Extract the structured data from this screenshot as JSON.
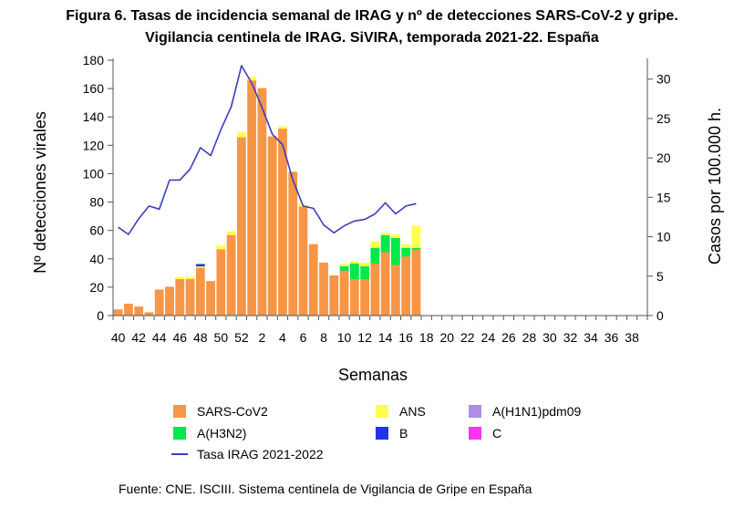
{
  "chart_data": {
    "type": "bar",
    "title_line1": "Figura 6. Tasas de incidencia semanal de IRAG y nº de detecciones SARS-CoV-2 y gripe.",
    "title_line2": "Vigilancia centinela de IRAG. SiVIRA, temporada 2021-22. España",
    "xlabel": "Semanas",
    "ylabel_left": "Nº detecciones virales",
    "ylabel_right": "Casos por 100.000 h.",
    "ylim_left": [
      0,
      180
    ],
    "ylim_right": [
      0,
      32.4
    ],
    "yticks_left": [
      "0",
      "20",
      "40",
      "60",
      "80",
      "100",
      "120",
      "140",
      "160",
      "180"
    ],
    "yticks_right": [
      "0",
      "5",
      "10",
      "15",
      "20",
      "25",
      "30"
    ],
    "weeks": [
      "40",
      "41",
      "42",
      "43",
      "44",
      "45",
      "46",
      "47",
      "48",
      "49",
      "50",
      "51",
      "52",
      "1",
      "2",
      "3",
      "4",
      "5",
      "6",
      "7",
      "8",
      "9",
      "10",
      "11",
      "12",
      "13",
      "14",
      "15",
      "16",
      "17",
      "18",
      "19",
      "20",
      "21",
      "22",
      "23",
      "24",
      "25",
      "26",
      "27",
      "28",
      "29",
      "30",
      "31",
      "32",
      "33",
      "34",
      "35",
      "36",
      "37",
      "38",
      "39"
    ],
    "xtick_labels": [
      "40",
      "42",
      "44",
      "46",
      "48",
      "50",
      "52",
      "2",
      "4",
      "6",
      "8",
      "10",
      "12",
      "14",
      "16",
      "18",
      "20",
      "22",
      "24",
      "26",
      "28",
      "30",
      "32",
      "34",
      "36",
      "38"
    ],
    "series": [
      {
        "name": "SARS-CoV2",
        "color": "#f79646",
        "values": [
          4,
          8,
          6,
          2,
          18,
          20,
          26,
          26,
          34,
          24,
          47,
          57,
          126,
          166,
          160,
          126,
          132,
          101,
          77,
          50,
          37,
          28,
          32,
          26,
          26,
          37,
          45,
          36,
          42,
          47
        ]
      },
      {
        "name": "A(H3N2)",
        "color": "#00e84a",
        "values": [
          0,
          0,
          0,
          0,
          0,
          0,
          0,
          0,
          0,
          0,
          0,
          0,
          0,
          0,
          0,
          0,
          0,
          0,
          0,
          0,
          0,
          0,
          3,
          11,
          9,
          11,
          12,
          19,
          6,
          1
        ]
      },
      {
        "name": "ANS",
        "color": "#ffff4d",
        "values": [
          0,
          0,
          0,
          0,
          0,
          0,
          1,
          1,
          1,
          0,
          2,
          2,
          3,
          2,
          0,
          0,
          1,
          0,
          1,
          0,
          0,
          0,
          1,
          1,
          2,
          4,
          1,
          2,
          2,
          15
        ]
      },
      {
        "name": "B",
        "color": "#2233ee",
        "values": [
          0,
          0,
          0,
          0,
          0,
          0,
          0,
          0,
          1,
          0,
          0,
          0,
          0,
          0,
          0,
          0,
          0,
          0,
          0,
          0,
          0,
          0,
          0,
          0,
          0,
          0,
          0,
          0,
          0,
          0
        ]
      },
      {
        "name": "A(H1N1)pdm09",
        "color": "#b08ce8",
        "values": [
          0,
          0,
          0,
          0,
          0,
          0,
          0,
          0,
          0,
          0,
          0,
          0,
          0,
          0,
          0,
          0,
          0,
          0,
          0,
          0,
          0,
          0,
          0,
          0,
          0,
          0,
          0,
          0,
          0,
          0
        ]
      },
      {
        "name": "C",
        "color": "#ff33ee",
        "values": [
          0,
          0,
          0,
          0,
          0,
          0,
          0,
          0,
          0,
          0,
          0,
          0,
          0,
          0,
          0,
          0,
          0,
          0,
          0,
          0,
          0,
          0,
          0,
          0,
          0,
          0,
          0,
          0,
          0,
          0
        ]
      }
    ],
    "line": {
      "name": "Tasa IRAG 2021-2022",
      "color": "#3a3fbf",
      "axis": "right",
      "values": [
        11.2,
        10.3,
        12.3,
        13.9,
        13.5,
        17.2,
        17.2,
        18.6,
        21.3,
        20.3,
        23.6,
        26.5,
        31.7,
        29.5,
        26.4,
        23.0,
        21.7,
        17.2,
        13.9,
        13.6,
        11.5,
        10.5,
        11.4,
        12.0,
        12.2,
        12.9,
        14.3,
        12.9,
        13.9,
        14.2
      ]
    },
    "legend": [
      {
        "label": "SARS-CoV2",
        "color": "#f79646",
        "kind": "box"
      },
      {
        "label": "ANS",
        "color": "#ffff4d",
        "kind": "box"
      },
      {
        "label": "A(H1N1)pdm09",
        "color": "#b08ce8",
        "kind": "box"
      },
      {
        "label": "A(H3N2)",
        "color": "#00e84a",
        "kind": "box"
      },
      {
        "label": "B",
        "color": "#2233ee",
        "kind": "box"
      },
      {
        "label": "C",
        "color": "#ff33ee",
        "kind": "box"
      },
      {
        "label": "Tasa IRAG 2021-2022",
        "color": "#3a3fbf",
        "kind": "line"
      }
    ],
    "source": "Fuente: CNE. ISCIII. Sistema centinela de Vigilancia de Gripe en España"
  }
}
